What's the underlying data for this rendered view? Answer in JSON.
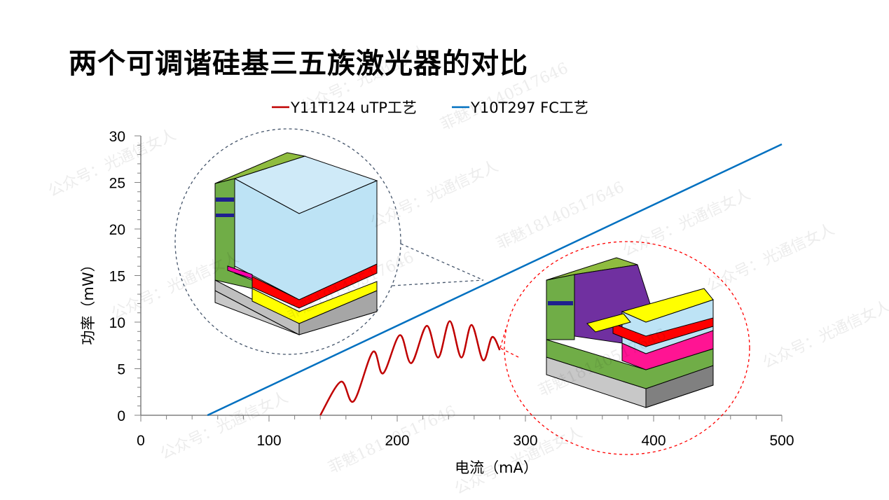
{
  "title": "两个可调谐硅基三五族激光器的对比",
  "watermarks": [
    "公众号：光通信女人",
    "菲魅18140517646"
  ],
  "chart_data": {
    "type": "line",
    "title": "",
    "xlabel": "电流（mA）",
    "ylabel": "功率（mW）",
    "xlim": [
      0,
      500
    ],
    "ylim": [
      0,
      30
    ],
    "xticks": [
      "0",
      "100",
      "200",
      "300",
      "400",
      "500"
    ],
    "yticks": [
      "0",
      "5",
      "10",
      "15",
      "20",
      "25",
      "30"
    ],
    "grid": false,
    "legend_position": "top",
    "series": [
      {
        "name": "Y11T124 uTP工艺",
        "color": "#c00000",
        "x": [
          140,
          156,
          166,
          181,
          189,
          202,
          211,
          223,
          232,
          241,
          250,
          258,
          267,
          274,
          280
        ],
        "y": [
          0,
          3.6,
          1.5,
          6.8,
          4.5,
          8.6,
          5.6,
          9.6,
          6.2,
          10.1,
          6.2,
          9.7,
          5.9,
          8.4,
          7.0
        ]
      },
      {
        "name": "Y10T297 FC工艺",
        "color": "#0070c0",
        "x": [
          52,
          500
        ],
        "y": [
          0,
          29.1
        ]
      }
    ],
    "insets": [
      "uTP device cross-section illustration",
      "FC device cross-section illustration"
    ]
  }
}
